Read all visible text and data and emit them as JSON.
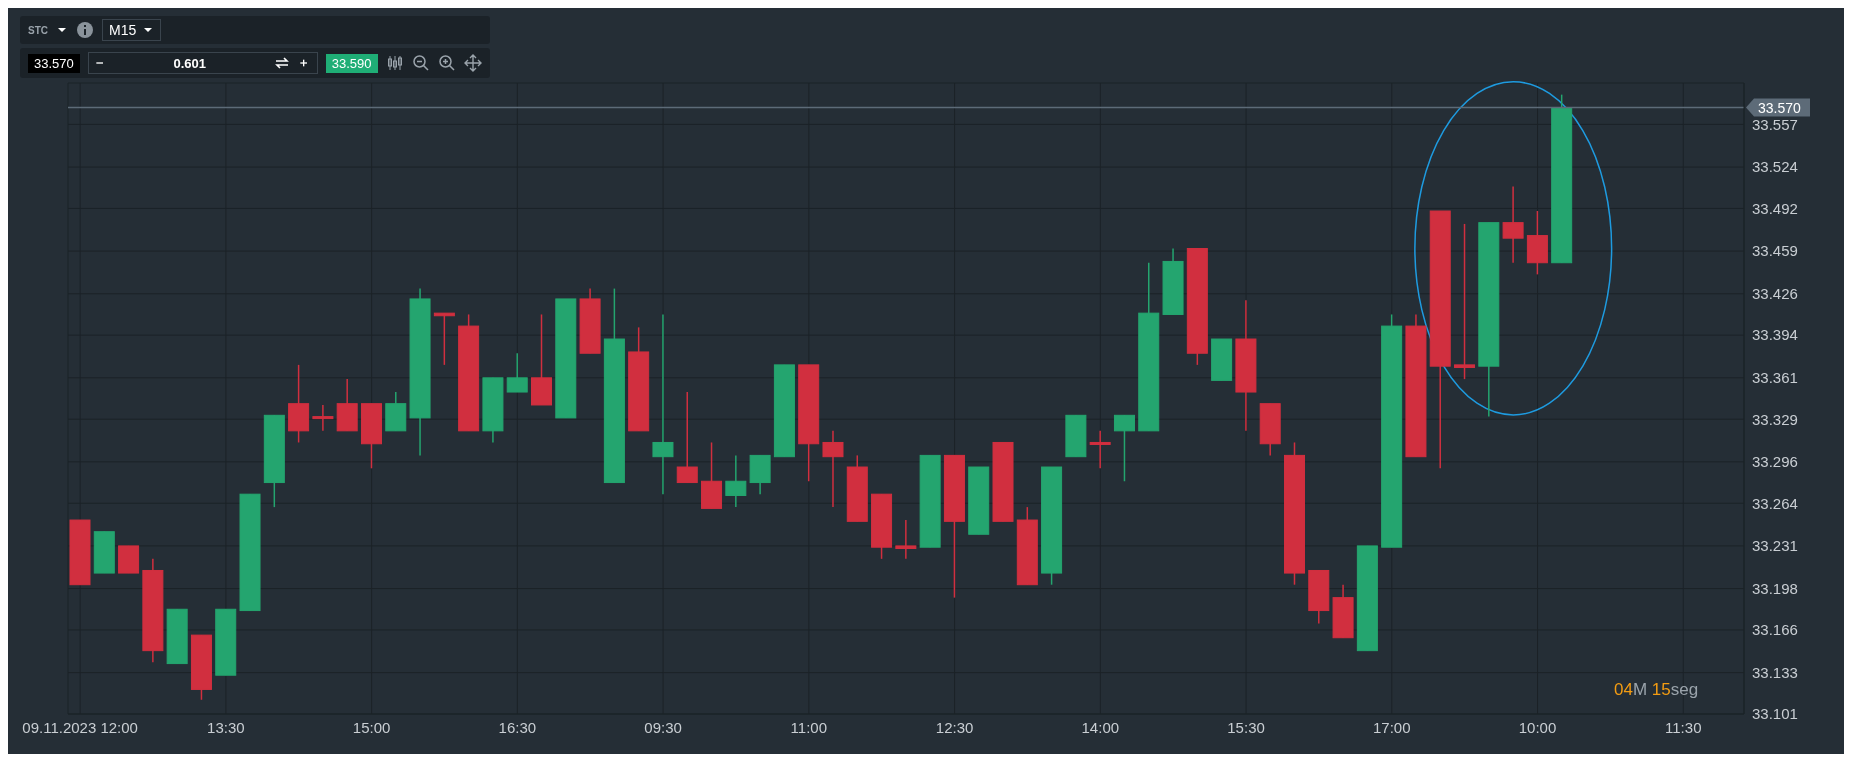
{
  "chart_data": {
    "type": "candlestick",
    "categories": [
      "09.11.2023 12:00",
      null,
      null,
      null,
      null,
      null,
      "13:30",
      null,
      null,
      null,
      null,
      null,
      "15:00",
      null,
      null,
      null,
      null,
      null,
      "16:30",
      null,
      null,
      null,
      null,
      null,
      "09:30",
      null,
      null,
      null,
      null,
      null,
      "11:00",
      null,
      null,
      null,
      null,
      null,
      "12:30",
      null,
      null,
      null,
      null,
      null,
      "14:00",
      null,
      null,
      null,
      null,
      null,
      "15:30",
      null,
      null,
      null,
      null,
      null,
      "17:00",
      null,
      null,
      null,
      null,
      null,
      "10:00",
      null,
      null,
      null,
      null,
      null,
      "11:30",
      null,
      null
    ],
    "ohlc": [
      [
        33.251,
        33.251,
        33.201,
        33.201
      ],
      [
        33.21,
        33.242,
        33.21,
        33.242
      ],
      [
        33.231,
        33.231,
        33.21,
        33.21
      ],
      [
        33.212,
        33.221,
        33.141,
        33.15
      ],
      [
        33.14,
        33.182,
        33.14,
        33.182
      ],
      [
        33.162,
        33.162,
        33.112,
        33.12
      ],
      [
        33.131,
        33.182,
        33.131,
        33.182
      ],
      [
        33.181,
        33.271,
        33.181,
        33.271
      ],
      [
        33.28,
        33.332,
        33.261,
        33.332
      ],
      [
        33.341,
        33.371,
        33.311,
        33.32
      ],
      [
        33.331,
        33.34,
        33.32,
        33.33
      ],
      [
        33.341,
        33.36,
        33.32,
        33.32
      ],
      [
        33.341,
        33.341,
        33.291,
        33.31
      ],
      [
        33.32,
        33.35,
        33.32,
        33.341
      ],
      [
        33.33,
        33.43,
        33.301,
        33.422
      ],
      [
        33.411,
        33.411,
        33.371,
        33.409
      ],
      [
        33.401,
        33.41,
        33.32,
        33.32
      ],
      [
        33.32,
        33.361,
        33.311,
        33.361
      ],
      [
        33.35,
        33.38,
        33.35,
        33.361
      ],
      [
        33.361,
        33.41,
        33.34,
        33.34
      ],
      [
        33.33,
        33.422,
        33.33,
        33.422
      ],
      [
        33.422,
        33.43,
        33.38,
        33.38
      ],
      [
        33.28,
        33.43,
        33.28,
        33.391
      ],
      [
        33.381,
        33.4,
        33.32,
        33.32
      ],
      [
        33.3,
        33.41,
        33.271,
        33.311
      ],
      [
        33.292,
        33.35,
        33.28,
        33.28
      ],
      [
        33.281,
        33.311,
        33.26,
        33.26
      ],
      [
        33.27,
        33.301,
        33.261,
        33.281
      ],
      [
        33.28,
        33.301,
        33.271,
        33.301
      ],
      [
        33.3,
        33.371,
        33.3,
        33.371
      ],
      [
        33.371,
        33.371,
        33.281,
        33.31
      ],
      [
        33.311,
        33.32,
        33.261,
        33.3
      ],
      [
        33.292,
        33.301,
        33.25,
        33.25
      ],
      [
        33.271,
        33.271,
        33.221,
        33.23
      ],
      [
        33.231,
        33.251,
        33.221,
        33.229
      ],
      [
        33.23,
        33.301,
        33.23,
        33.301
      ],
      [
        33.301,
        33.301,
        33.191,
        33.25
      ],
      [
        33.24,
        33.292,
        33.24,
        33.292
      ],
      [
        33.311,
        33.311,
        33.25,
        33.25
      ],
      [
        33.251,
        33.261,
        33.201,
        33.201
      ],
      [
        33.21,
        33.292,
        33.201,
        33.292
      ],
      [
        33.3,
        33.332,
        33.3,
        33.332
      ],
      [
        33.311,
        33.32,
        33.291,
        33.31
      ],
      [
        33.32,
        33.332,
        33.281,
        33.332
      ],
      [
        33.32,
        33.45,
        33.32,
        33.411
      ],
      [
        33.41,
        33.461,
        33.41,
        33.451
      ],
      [
        33.461,
        33.461,
        33.371,
        33.38
      ],
      [
        33.359,
        33.391,
        33.359,
        33.391
      ],
      [
        33.391,
        33.421,
        33.32,
        33.35
      ],
      [
        33.341,
        33.341,
        33.301,
        33.31
      ],
      [
        33.301,
        33.311,
        33.201,
        33.21
      ],
      [
        33.212,
        33.212,
        33.171,
        33.181
      ],
      [
        33.191,
        33.201,
        33.16,
        33.16
      ],
      [
        33.15,
        33.231,
        33.15,
        33.231
      ],
      [
        33.23,
        33.41,
        33.23,
        33.401
      ],
      [
        33.401,
        33.41,
        33.3,
        33.3
      ],
      [
        33.49,
        33.49,
        33.291,
        33.37
      ],
      [
        33.371,
        33.48,
        33.36,
        33.369
      ],
      [
        33.37,
        33.481,
        33.331,
        33.481
      ],
      [
        33.481,
        33.509,
        33.45,
        33.469
      ],
      [
        33.471,
        33.49,
        33.441,
        33.45
      ],
      [
        33.45,
        33.58,
        33.45,
        33.57
      ],
      null,
      null,
      null,
      null,
      null,
      null,
      null
    ],
    "colors": [
      "#d12f3f",
      "#24a56f",
      "#d12f3f",
      "#d12f3f",
      "#24a56f",
      "#d12f3f",
      "#24a56f",
      "#24a56f",
      "#24a56f",
      "#d12f3f",
      "#d12f3f",
      "#d12f3f",
      "#d12f3f",
      "#24a56f",
      "#24a56f",
      "#d12f3f",
      "#d12f3f",
      "#24a56f",
      "#24a56f",
      "#d12f3f",
      "#24a56f",
      "#d12f3f",
      "#24a56f",
      "#d12f3f",
      "#24a56f",
      "#d12f3f",
      "#d12f3f",
      "#24a56f",
      "#24a56f",
      "#24a56f",
      "#d12f3f",
      "#d12f3f",
      "#d12f3f",
      "#d12f3f",
      "#d12f3f",
      "#24a56f",
      "#d12f3f",
      "#24a56f",
      "#d12f3f",
      "#d12f3f",
      "#24a56f",
      "#24a56f",
      "#d12f3f",
      "#24a56f",
      "#24a56f",
      "#24a56f",
      "#d12f3f",
      "#24a56f",
      "#d12f3f",
      "#d12f3f",
      "#d12f3f",
      "#d12f3f",
      "#d12f3f",
      "#24a56f",
      "#24a56f",
      "#d12f3f",
      "#d12f3f",
      "#d12f3f",
      "#24a56f",
      "#d12f3f",
      "#d12f3f",
      "#24a56f",
      null,
      null,
      null,
      null,
      null,
      null,
      null
    ],
    "ylim": [
      33.101,
      33.589
    ],
    "yticks": [
      33.101,
      33.133,
      33.166,
      33.198,
      33.231,
      33.264,
      33.296,
      33.329,
      33.361,
      33.394,
      33.426,
      33.459,
      33.492,
      33.524,
      33.557
    ],
    "grid": true,
    "ref_lines": [
      {
        "axis": "y",
        "value": 33.57,
        "label": "33.570",
        "color": "#5d6b78"
      }
    ],
    "annotations": [
      "STC",
      "M15",
      "33.570",
      "0.601",
      "33.590",
      "04M 15seg"
    ]
  }
}
